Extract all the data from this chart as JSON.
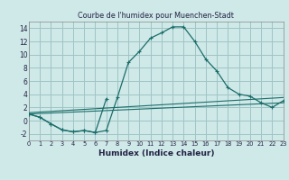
{
  "title": "Courbe de l'humidex pour Muenchen-Stadt",
  "xlabel": "Humidex (Indice chaleur)",
  "background_color": "#cfe8e8",
  "grid_color": "#a0c4c4",
  "line_color": "#1a6e6a",
  "xlim": [
    0,
    23
  ],
  "ylim": [
    -3,
    15
  ],
  "xticks": [
    0,
    1,
    2,
    3,
    4,
    5,
    6,
    7,
    8,
    9,
    10,
    11,
    12,
    13,
    14,
    15,
    16,
    17,
    18,
    19,
    20,
    21,
    22,
    23
  ],
  "yticks": [
    -2,
    0,
    2,
    4,
    6,
    8,
    10,
    12,
    14
  ],
  "main_curve": {
    "x": [
      0,
      1,
      2,
      3,
      4,
      5,
      6,
      7,
      8,
      9,
      10,
      11,
      12,
      13,
      14,
      15,
      16,
      17,
      18,
      19,
      20,
      21,
      22,
      23
    ],
    "y": [
      1.0,
      0.5,
      -0.5,
      -1.4,
      -1.7,
      -1.5,
      -1.8,
      -1.5,
      3.5,
      8.8,
      10.5,
      12.5,
      13.3,
      14.2,
      14.2,
      12.0,
      9.3,
      7.5,
      5.0,
      4.0,
      3.7,
      2.7,
      2.0,
      3.0
    ]
  },
  "sub_curve": {
    "x": [
      0,
      1,
      2,
      3,
      4,
      5,
      6,
      7
    ],
    "y": [
      1.0,
      0.5,
      -0.5,
      -1.4,
      -1.7,
      -1.5,
      -1.8,
      3.3
    ]
  },
  "line1": {
    "x": [
      0,
      23
    ],
    "y": [
      1.2,
      3.5
    ]
  },
  "line2": {
    "x": [
      0,
      23
    ],
    "y": [
      1.0,
      2.7
    ]
  }
}
